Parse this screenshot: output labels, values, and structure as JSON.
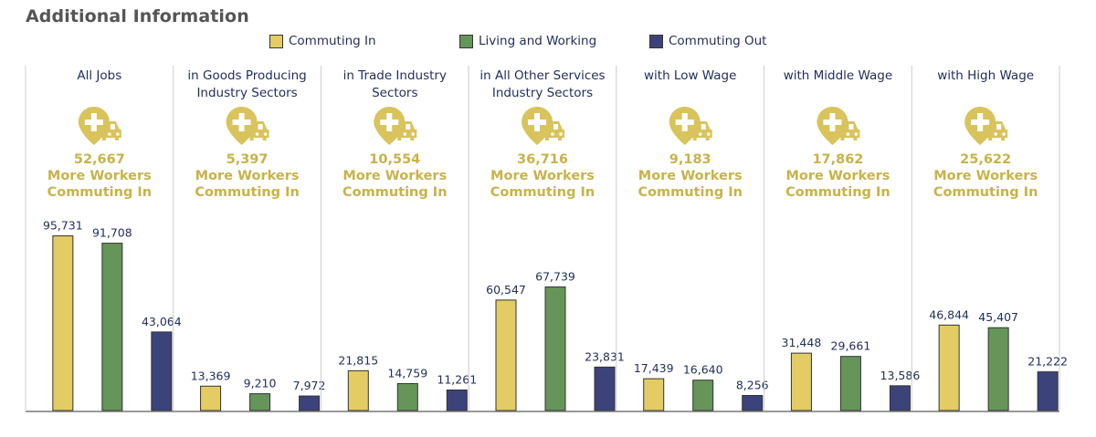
{
  "title": "Additional Information",
  "legend": [
    {
      "label": "Commuting In",
      "color": "#e3cc63"
    },
    {
      "label": "Living and Working",
      "color": "#66955a"
    },
    {
      "label": "Commuting Out",
      "color": "#3c437a"
    }
  ],
  "icon": "car-location-plus-icon",
  "colors": {
    "accent": "#d9c35c",
    "diff_text": "#c9b24a",
    "label_text": "#1f2d5c",
    "divider": "#cccccc",
    "baseline": "#999999"
  },
  "chart_data": {
    "type": "bar",
    "series_names": [
      "Commuting In",
      "Living and Working",
      "Commuting Out"
    ],
    "diff_caption_lines": [
      "More Workers",
      "Commuting In"
    ],
    "ylim": [
      0,
      100000
    ],
    "panels": [
      {
        "label_lines": [
          "All Jobs"
        ],
        "diff": "52,667",
        "values": [
          95731,
          91708,
          43064
        ],
        "value_labels": [
          "95,731",
          "91,708",
          "43,064"
        ]
      },
      {
        "label_lines": [
          "in Goods Producing",
          "Industry Sectors"
        ],
        "diff": "5,397",
        "values": [
          13369,
          9210,
          7972
        ],
        "value_labels": [
          "13,369",
          "9,210",
          "7,972"
        ]
      },
      {
        "label_lines": [
          "in Trade Industry",
          "Sectors"
        ],
        "diff": "10,554",
        "values": [
          21815,
          14759,
          11261
        ],
        "value_labels": [
          "21,815",
          "14,759",
          "11,261"
        ]
      },
      {
        "label_lines": [
          "in All Other Services",
          "Industry Sectors"
        ],
        "diff": "36,716",
        "values": [
          60547,
          67739,
          23831
        ],
        "value_labels": [
          "60,547",
          "67,739",
          "23,831"
        ]
      },
      {
        "label_lines": [
          "with Low Wage"
        ],
        "diff": "9,183",
        "values": [
          17439,
          16640,
          8256
        ],
        "value_labels": [
          "17,439",
          "16,640",
          "8,256"
        ]
      },
      {
        "label_lines": [
          "with Middle Wage"
        ],
        "diff": "17,862",
        "values": [
          31448,
          29661,
          13586
        ],
        "value_labels": [
          "31,448",
          "29,661",
          "13,586"
        ]
      },
      {
        "label_lines": [
          "with High Wage"
        ],
        "diff": "25,622",
        "values": [
          46844,
          45407,
          21222
        ],
        "value_labels": [
          "46,844",
          "45,407",
          "21,222"
        ]
      }
    ]
  }
}
